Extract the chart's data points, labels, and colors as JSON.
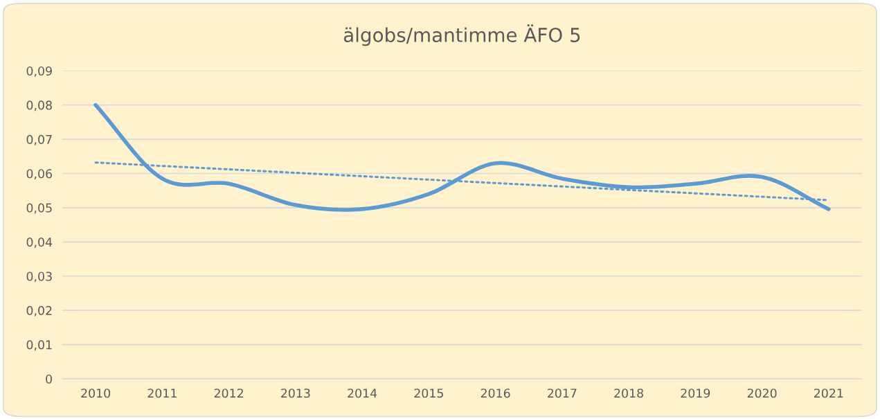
{
  "chart_data": {
    "type": "line",
    "title": "älgobs/mantimme ÄFO 5",
    "categories": [
      "2010",
      "2011",
      "2012",
      "2013",
      "2014",
      "2015",
      "2016",
      "2017",
      "2018",
      "2019",
      "2020",
      "2021"
    ],
    "series": [
      {
        "color": "#5b9bd5",
        "values": [
          0.08,
          0.0585,
          0.057,
          0.0508,
          0.0496,
          0.054,
          0.063,
          0.0585,
          0.056,
          0.057,
          0.059,
          0.0496
        ]
      },
      {
        "type": "line",
        "color": "#5b9bd5",
        "line_style": "dotted",
        "values": [
          0.0632,
          0.0622,
          0.0612,
          0.0602,
          0.0592,
          0.0582,
          0.0572,
          0.0562,
          0.0552,
          0.0542,
          0.0532,
          0.0522
        ]
      }
    ],
    "ylim": [
      0,
      0.09
    ],
    "yticks": [
      0,
      {
        "value": 0.01,
        "label": "0,01"
      },
      {
        "value": 0.02,
        "label": "0,02"
      },
      {
        "value": 0.03,
        "label": "0,03"
      },
      {
        "value": 0.04,
        "label": "0,04"
      },
      {
        "value": 0.05,
        "label": "0,05"
      },
      {
        "value": 0.06,
        "label": "0,06"
      },
      {
        "value": 0.07,
        "label": "0,07"
      },
      {
        "value": 0.08,
        "label": "0,08"
      },
      {
        "value": 0.09,
        "label": "0,09"
      }
    ],
    "grid": "y",
    "marker": "none",
    "line_style": "solid"
  }
}
